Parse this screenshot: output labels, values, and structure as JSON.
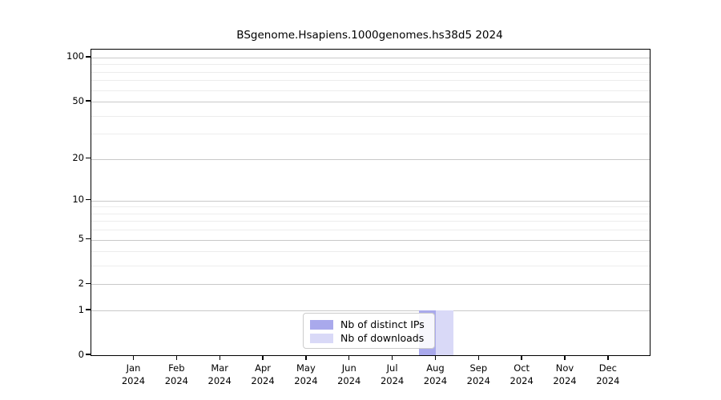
{
  "chart_data": {
    "type": "bar",
    "title": "BSgenome.Hsapiens.1000genomes.hs38d5 2024",
    "categories": [
      "Jan 2024",
      "Feb 2024",
      "Mar 2024",
      "Apr 2024",
      "May 2024",
      "Jun 2024",
      "Jul 2024",
      "Aug 2024",
      "Sep 2024",
      "Oct 2024",
      "Nov 2024",
      "Dec 2024"
    ],
    "series": [
      {
        "name": "Nb of distinct IPs",
        "color": "#a9a9ec",
        "values": [
          0,
          0,
          0,
          0,
          0,
          0,
          0,
          1,
          0,
          0,
          0,
          0
        ]
      },
      {
        "name": "Nb of downloads",
        "color": "#d9d9f7",
        "values": [
          0,
          0,
          0,
          0,
          0,
          0,
          0,
          1,
          0,
          0,
          0,
          0
        ]
      }
    ],
    "yscale": "log1p",
    "ylim": [
      0,
      113.3
    ],
    "y_ticks": [
      0,
      1,
      2,
      5,
      10,
      20,
      50,
      100
    ],
    "y_minor_ticks": [
      3,
      4,
      6,
      7,
      8,
      9,
      30,
      40,
      60,
      70,
      80,
      90
    ],
    "grid": "horizontal",
    "gridline_major_color": "#c9c9c9",
    "gridline_minor_color": "#ececec",
    "legend_position": "inside-bottom-center",
    "xlabel": "",
    "ylabel": ""
  }
}
